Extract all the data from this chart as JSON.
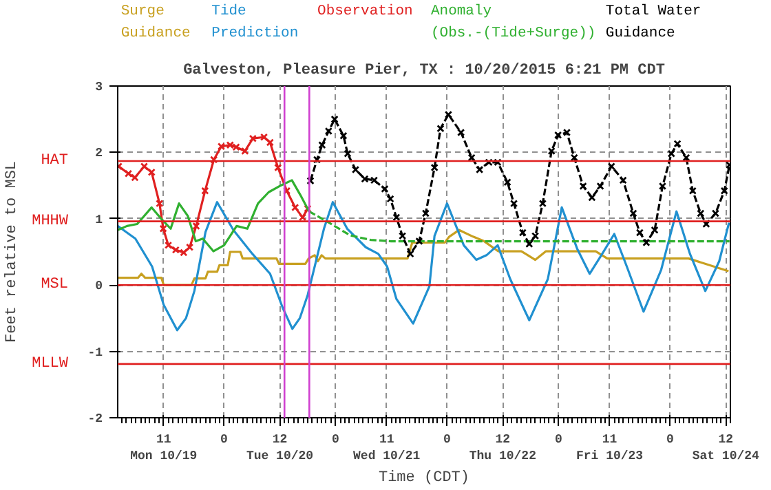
{
  "chart_data": {
    "type": "line",
    "title": "Galveston, Pleasure Pier, TX : 10/20/2015 6:21 PM CDT",
    "xlabel": "Time (CDT)",
    "ylabel": "Feet relative to MSL",
    "xlim": [
      "2015-10-19T01:06",
      "2015-10-24T13:00"
    ],
    "ylim": [
      -2,
      3
    ],
    "yticks": [
      -2,
      -1,
      0,
      1,
      2,
      3
    ],
    "xticks": [
      {
        "value": "2015-10-19T11:00",
        "label": "11\nMon 10/19"
      },
      {
        "value": "2015-10-20T00:00",
        "label": "0"
      },
      {
        "value": "2015-10-20T12:00",
        "label": "12\nTue 10/20"
      },
      {
        "value": "2015-10-21T00:00",
        "label": "0"
      },
      {
        "value": "2015-10-21T11:00",
        "label": "11\nWed 10/21"
      },
      {
        "value": "2015-10-22T00:00",
        "label": "0"
      },
      {
        "value": "2015-10-22T12:00",
        "label": "12\nThu 10/22"
      },
      {
        "value": "2015-10-23T00:00",
        "label": "0"
      },
      {
        "value": "2015-10-23T11:00",
        "label": "11\nFri 10/23"
      },
      {
        "value": "2015-10-24T00:00",
        "label": "0"
      },
      {
        "value": "2015-10-24T12:00",
        "label": "12\nSat 10/24"
      }
    ],
    "grid": true,
    "legend": "top",
    "series": [
      {
        "name": "Surge Guidance",
        "color": "#c8a020",
        "x": [
          "2015-10-19T01:12",
          "2015-10-19T05:30",
          "2015-10-19T06:12",
          "2015-10-19T07:00",
          "2015-10-19T10:30",
          "2015-10-19T11:00",
          "2015-10-19T17:00",
          "2015-10-19T17:36",
          "2015-10-19T20:00",
          "2015-10-19T20:30",
          "2015-10-19T22:30",
          "2015-10-19T23:00",
          "2015-10-20T00:48",
          "2015-10-20T01:18",
          "2015-10-20T03:30",
          "2015-10-20T04:00",
          "2015-10-20T11:18",
          "2015-10-20T11:48",
          "2015-10-20T17:30",
          "2015-10-20T18:12",
          "2015-10-20T19:30",
          "2015-10-20T20:12",
          "2015-10-20T21:00",
          "2015-10-20T21:48",
          "2015-10-21T10:42",
          "2015-10-21T15:30",
          "2015-10-21T16:30",
          "2015-10-21T23:30",
          "2015-10-22T00:30",
          "2015-10-22T02:36",
          "2015-10-22T05:36",
          "2015-10-22T08:00",
          "2015-10-22T11:00",
          "2015-10-22T16:00",
          "2015-10-22T19:00",
          "2015-10-22T21:18",
          "2015-10-23T08:00",
          "2015-10-23T10:30",
          "2015-10-24T04:00",
          "2015-10-24T12:36"
        ],
        "values": [
          0.11,
          0.11,
          0.17,
          0.11,
          0.11,
          0.0,
          0.0,
          0.1,
          0.1,
          0.2,
          0.2,
          0.3,
          0.3,
          0.5,
          0.5,
          0.4,
          0.4,
          0.32,
          0.32,
          0.4,
          0.45,
          0.36,
          0.45,
          0.4,
          0.4,
          0.4,
          0.64,
          0.64,
          0.73,
          0.83,
          0.73,
          0.66,
          0.51,
          0.51,
          0.38,
          0.51,
          0.51,
          0.4,
          0.4,
          0.21
        ]
      },
      {
        "name": "Tide Prediction",
        "color": "#2090d0",
        "x": [
          "2015-10-19T01:06",
          "2015-10-19T04:54",
          "2015-10-19T08:30",
          "2015-10-19T11:00",
          "2015-10-19T13:54",
          "2015-10-19T15:48",
          "2015-10-19T17:36",
          "2015-10-19T20:00",
          "2015-10-19T22:30",
          "2015-10-20T02:00",
          "2015-10-20T06:06",
          "2015-10-20T09:54",
          "2015-10-20T12:36",
          "2015-10-20T14:42",
          "2015-10-20T16:18",
          "2015-10-20T18:00",
          "2015-10-20T21:30",
          "2015-10-20T23:24",
          "2015-10-21T02:30",
          "2015-10-21T06:30",
          "2015-10-21T09:12",
          "2015-10-21T11:06",
          "2015-10-21T13:06",
          "2015-10-21T16:42",
          "2015-10-21T20:12",
          "2015-10-21T21:18",
          "2015-10-22T00:00",
          "2015-10-22T03:36",
          "2015-10-22T06:18",
          "2015-10-22T08:30",
          "2015-10-22T10:54",
          "2015-10-22T13:36",
          "2015-10-22T17:42",
          "2015-10-22T21:42",
          "2015-10-23T00:42",
          "2015-10-23T04:00",
          "2015-10-23T06:42",
          "2015-10-23T09:24",
          "2015-10-23T12:00",
          "2015-10-23T14:42",
          "2015-10-23T18:18",
          "2015-10-23T22:06",
          "2015-10-24T01:24",
          "2015-10-24T04:18",
          "2015-10-24T07:36",
          "2015-10-24T10:36",
          "2015-10-24T12:42"
        ],
        "values": [
          0.89,
          0.7,
          0.28,
          -0.3,
          -0.68,
          -0.5,
          -0.09,
          0.8,
          1.25,
          0.83,
          0.47,
          0.17,
          -0.34,
          -0.66,
          -0.5,
          -0.15,
          0.85,
          1.25,
          0.85,
          0.57,
          0.47,
          0.28,
          -0.21,
          -0.58,
          -0.02,
          0.74,
          1.23,
          0.6,
          0.38,
          0.45,
          0.6,
          0.09,
          -0.53,
          0.09,
          1.17,
          0.55,
          0.17,
          0.47,
          0.77,
          0.28,
          -0.4,
          0.23,
          1.11,
          0.47,
          -0.09,
          0.36,
          0.94
        ]
      },
      {
        "name": "Observation",
        "color": "#e02020",
        "marker": "cross",
        "x": [
          "2015-10-19T01:18",
          "2015-10-19T03:24",
          "2015-10-19T04:48",
          "2015-10-19T06:48",
          "2015-10-19T08:24",
          "2015-10-19T10:06",
          "2015-10-19T10:54",
          "2015-10-19T12:00",
          "2015-10-19T13:36",
          "2015-10-19T15:18",
          "2015-10-19T16:36",
          "2015-10-19T18:00",
          "2015-10-19T19:54",
          "2015-10-19T21:48",
          "2015-10-19T23:24",
          "2015-10-20T01:18",
          "2015-10-20T02:36",
          "2015-10-20T04:30",
          "2015-10-20T06:12",
          "2015-10-20T08:36",
          "2015-10-20T09:54",
          "2015-10-20T11:36",
          "2015-10-20T13:30",
          "2015-10-20T15:18",
          "2015-10-20T16:54",
          "2015-10-20T18:00"
        ],
        "values": [
          1.79,
          1.68,
          1.62,
          1.79,
          1.7,
          1.23,
          0.85,
          0.6,
          0.53,
          0.49,
          0.57,
          0.89,
          1.42,
          1.89,
          2.09,
          2.11,
          2.08,
          2.02,
          2.21,
          2.23,
          2.15,
          1.77,
          1.42,
          1.17,
          1.02,
          1.15
        ]
      },
      {
        "name": "Anomaly (Obs.-(Tide+Surge))",
        "color": "#30b030",
        "x": [
          "2015-10-19T01:06",
          "2015-10-19T03:06",
          "2015-10-19T05:18",
          "2015-10-19T08:24",
          "2015-10-19T10:42",
          "2015-10-19T12:30",
          "2015-10-19T14:18",
          "2015-10-19T16:12",
          "2015-10-19T17:54",
          "2015-10-19T19:24",
          "2015-10-19T21:42",
          "2015-10-20T00:00",
          "2015-10-20T02:42",
          "2015-10-20T05:00",
          "2015-10-20T07:18",
          "2015-10-20T09:36",
          "2015-10-20T11:54",
          "2015-10-20T14:36",
          "2015-10-20T16:24",
          "2015-10-20T18:18"
        ],
        "values": [
          0.83,
          0.89,
          0.92,
          1.17,
          0.98,
          0.85,
          1.23,
          1.04,
          0.66,
          0.7,
          0.51,
          0.6,
          0.89,
          0.85,
          1.23,
          1.4,
          1.49,
          1.58,
          1.36,
          1.11
        ]
      },
      {
        "color": "#30b030",
        "line_style": "dashed",
        "x": [
          "2015-10-20T18:18",
          "2015-10-20T22:36",
          "2015-10-21T03:06",
          "2015-10-21T07:36",
          "2015-10-21T12:00",
          "2015-10-24T12:48"
        ],
        "values": [
          1.11,
          0.94,
          0.75,
          0.68,
          0.66,
          0.66
        ]
      },
      {
        "name": "Total Water Guidance",
        "color": "#000000",
        "marker": "cross",
        "line_style": "dashed",
        "x": [
          "2015-10-20T18:36",
          "2015-10-20T20:00",
          "2015-10-20T21:06",
          "2015-10-20T22:30",
          "2015-10-20T23:48",
          "2015-10-21T01:42",
          "2015-10-21T02:36",
          "2015-10-21T04:18",
          "2015-10-21T06:18",
          "2015-10-21T08:18",
          "2015-10-21T10:36",
          "2015-10-21T11:48",
          "2015-10-21T13:06",
          "2015-10-21T14:24",
          "2015-10-21T16:06",
          "2015-10-21T18:00",
          "2015-10-21T19:24",
          "2015-10-21T21:18",
          "2015-10-21T22:36",
          "2015-10-22T00:18",
          "2015-10-22T03:00",
          "2015-10-22T05:18",
          "2015-10-22T07:00",
          "2015-10-22T09:00",
          "2015-10-22T10:54",
          "2015-10-22T13:00",
          "2015-10-22T14:24",
          "2015-10-22T16:18",
          "2015-10-22T17:42",
          "2015-10-22T19:00",
          "2015-10-22T20:36",
          "2015-10-22T22:30",
          "2015-10-22T23:54",
          "2015-10-23T01:48",
          "2015-10-23T03:24",
          "2015-10-23T05:18",
          "2015-10-23T07:12",
          "2015-10-23T09:00",
          "2015-10-23T11:24",
          "2015-10-23T13:54",
          "2015-10-23T16:06",
          "2015-10-23T17:30",
          "2015-10-23T18:54",
          "2015-10-23T20:42",
          "2015-10-23T22:24",
          "2015-10-24T00:18",
          "2015-10-24T01:36",
          "2015-10-24T03:30",
          "2015-10-24T04:54",
          "2015-10-24T06:36",
          "2015-10-24T07:48",
          "2015-10-24T09:48",
          "2015-10-24T11:42",
          "2015-10-24T12:48"
        ],
        "values": [
          1.57,
          1.89,
          2.11,
          2.32,
          2.5,
          2.25,
          1.98,
          1.74,
          1.6,
          1.58,
          1.45,
          1.3,
          1.02,
          0.74,
          0.47,
          0.66,
          1.08,
          1.77,
          2.36,
          2.57,
          2.3,
          1.92,
          1.74,
          1.85,
          1.85,
          1.55,
          1.23,
          0.79,
          0.62,
          0.74,
          1.23,
          2.02,
          2.26,
          2.3,
          1.92,
          1.49,
          1.32,
          1.49,
          1.79,
          1.58,
          1.08,
          0.79,
          0.64,
          0.83,
          1.49,
          1.98,
          2.13,
          1.92,
          1.42,
          1.08,
          0.92,
          1.08,
          1.42,
          1.81
        ]
      }
    ],
    "ref_lines": [
      {
        "axis": "y",
        "value": 1.87,
        "label": "HAT",
        "color": "#e02020"
      },
      {
        "axis": "y",
        "value": 0.96,
        "label": "MHHW",
        "color": "#e02020"
      },
      {
        "axis": "y",
        "value": 0,
        "label": "MSL",
        "color": "#e02020"
      },
      {
        "axis": "y",
        "value": -1.19,
        "label": "MLLW",
        "color": "#e02020"
      },
      {
        "axis": "x",
        "value": "2015-10-20T13:00",
        "color": "#d040d0"
      },
      {
        "axis": "x",
        "value": "2015-10-20T18:21",
        "color": "#d040d0"
      }
    ]
  }
}
